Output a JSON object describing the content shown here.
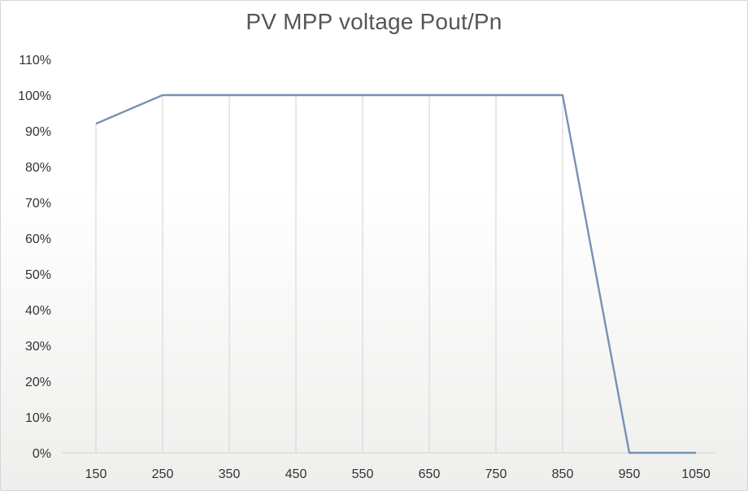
{
  "chart_data": {
    "type": "line",
    "title": "PV MPP voltage Pout/Pn",
    "xlabel": "",
    "ylabel": "",
    "x": [
      150,
      250,
      350,
      450,
      550,
      650,
      750,
      850,
      950,
      1050
    ],
    "xticks": [
      "150",
      "250",
      "350",
      "450",
      "550",
      "650",
      "750",
      "850",
      "950",
      "1050"
    ],
    "yticks": [
      "0%",
      "10%",
      "20%",
      "30%",
      "40%",
      "50%",
      "60%",
      "70%",
      "80%",
      "90%",
      "100%",
      "110%"
    ],
    "ylim": [
      0,
      110
    ],
    "series": [
      {
        "points": [
          [
            150,
            92
          ],
          [
            250,
            100
          ],
          [
            850,
            100
          ],
          [
            950,
            0
          ],
          [
            1050,
            0
          ]
        ],
        "color": "#7592b6"
      }
    ],
    "grid": "vertical lines below the curve",
    "gridColor": "#d9d9d9",
    "axisColor": "#d9d9d9",
    "legend": "none"
  }
}
